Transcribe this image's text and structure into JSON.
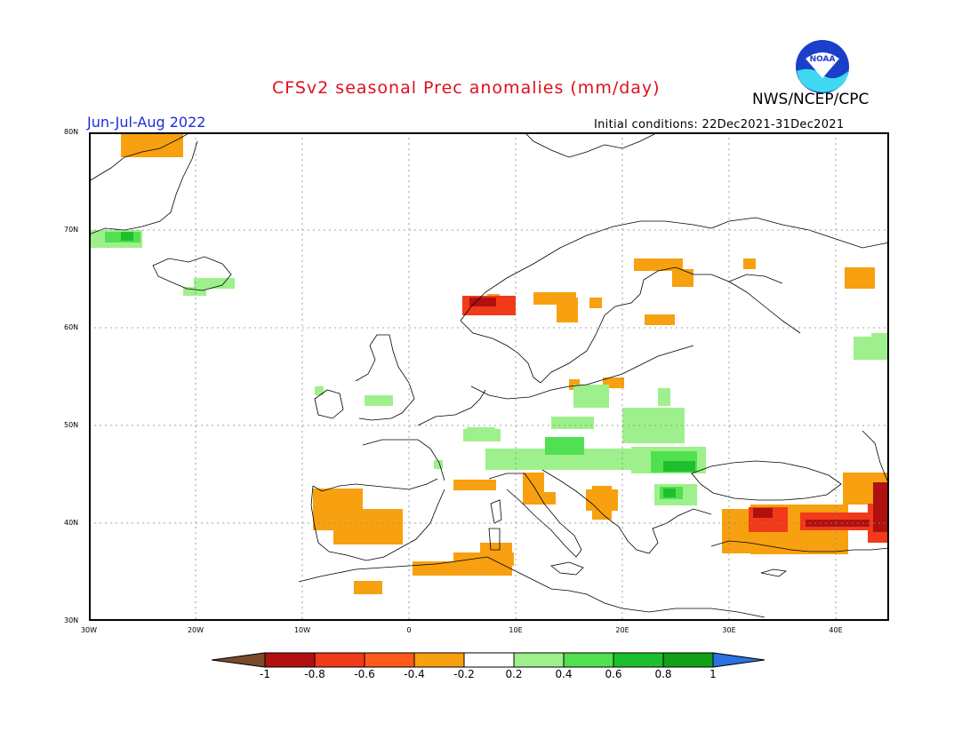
{
  "header": {
    "title": "CFSv2 seasonal Prec anomalies (mm/day)",
    "agency": "NWS/NCEP/CPC",
    "period": "Jun-Jul-Aug 2022",
    "initial_conditions": "Initial conditions: 22Dec2021-31Dec2021",
    "logo_text": "NOAA"
  },
  "map": {
    "lon_range": [
      -30,
      45
    ],
    "lat_range": [
      30,
      80
    ],
    "lat_labels": [
      "80N",
      "70N",
      "60N",
      "50N",
      "40N",
      "30N"
    ],
    "lon_labels": [
      "30W",
      "20W",
      "10W",
      "0",
      "10E",
      "20E",
      "30E",
      "40E"
    ]
  },
  "colorbar": {
    "labels": [
      "-1",
      "-0.8",
      "-0.6",
      "-0.4",
      "-0.2",
      "0.2",
      "0.4",
      "0.6",
      "0.8",
      "1"
    ],
    "colors": [
      "#7a4a2a",
      "#b01010",
      "#f03a1a",
      "#f7a010",
      "#ffffff",
      "#9ef08c",
      "#50e050",
      "#1cc02c",
      "#11a018",
      "#2a72e0"
    ]
  },
  "colors": {
    "title": "#e0101a",
    "period": "#1a2fd8",
    "dry_moderate": "#f7a010",
    "dry_strong": "#f03a1a",
    "dry_very_strong": "#b01010",
    "wet_weak": "#9ef08c",
    "wet_moderate": "#50e050",
    "wet_strong": "#1cc02c"
  }
}
